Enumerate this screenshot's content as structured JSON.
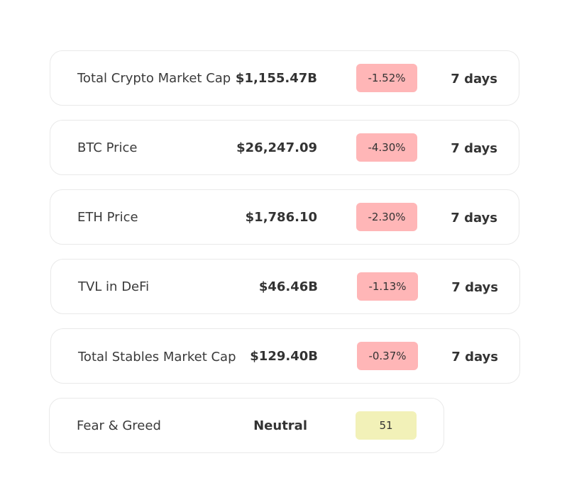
{
  "rows": [
    {
      "label": "Total Crypto Market Cap",
      "value": "$1,155.47B",
      "change": "-1.52%",
      "period": "7 days"
    },
    {
      "label": "BTC Price",
      "value": "$26,247.09",
      "change": "-4.30%",
      "period": "7 days"
    },
    {
      "label": "ETH Price",
      "value": "$1,786.10",
      "change": "-2.30%",
      "period": "7 days"
    },
    {
      "label": "TVL in DeFi",
      "value": "$46.46B",
      "change": "-1.13%",
      "period": "7 days"
    },
    {
      "label": "Total Stables Market Cap",
      "value": "$129.40B",
      "change": "-0.37%",
      "period": "7 days"
    }
  ],
  "fear_greed": {
    "label": "Fear & Greed",
    "sentiment": "Neutral",
    "score": "51"
  },
  "colors": {
    "negative_badge": "#ffb6b7",
    "neutral_badge": "#f2f1b8",
    "card_border": "#e9e9e9"
  }
}
